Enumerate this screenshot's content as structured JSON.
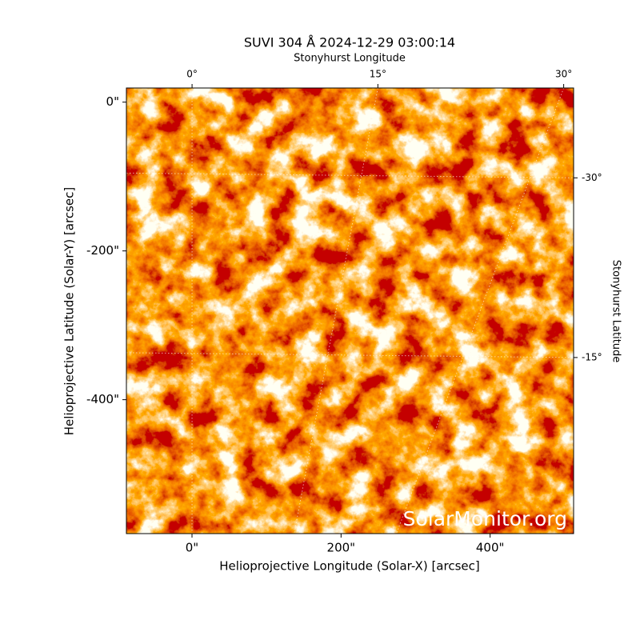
{
  "chart_data": {
    "type": "image",
    "title": "SUVI 304 Å 2024-12-29 03:00:14",
    "xlabel": "Helioprojective Longitude (Solar-X) [arcsec]",
    "ylabel": "Helioprojective Latitude (Solar-Y) [arcsec]",
    "x2label": "Stonyhurst Longitude",
    "y2label": "Stonyhurst Latitude",
    "watermark": "SolarMonitor.org",
    "xlim": [
      -88,
      512
    ],
    "ylim": [
      -580,
      19
    ],
    "xticks": [
      {
        "value": 0,
        "label": "0\""
      },
      {
        "value": 200,
        "label": "200\""
      },
      {
        "value": 400,
        "label": "400\""
      }
    ],
    "yticks": [
      {
        "value": 0,
        "label": "0\""
      },
      {
        "value": -200,
        "label": "-200\""
      },
      {
        "value": -400,
        "label": "-400\""
      }
    ],
    "x2lim": [
      -5.3,
      30.8
    ],
    "y2lim": [
      -0.3,
      -37.5
    ],
    "x2ticks": [
      {
        "value": 0,
        "label": "0°"
      },
      {
        "value": 15,
        "label": "15°"
      },
      {
        "value": 30,
        "label": "30°"
      }
    ],
    "y2ticks": [
      {
        "value": -15,
        "label": "-15°"
      },
      {
        "value": -30,
        "label": "-30°"
      }
    ],
    "grid": true
  }
}
